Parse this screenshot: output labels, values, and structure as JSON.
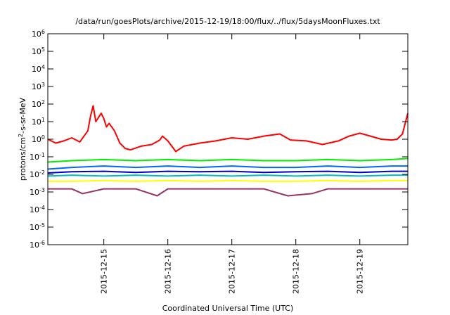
{
  "chart_data": {
    "type": "line",
    "title": "/data/run/goesPlots/archive/2015-12-19/18:00/flux/../flux/5daysMoonFluxes.txt",
    "xlabel": "Coordinated Universal Time (UTC)",
    "ylabel": {
      "base": "protons/cm",
      "sup": "2",
      "rest": "-s-sr-MeV"
    },
    "y_scale": "log",
    "ylim": [
      1e-06,
      1000000.0
    ],
    "xlim": [
      "2015-12-14 03:00",
      "2015-12-19 18:00"
    ],
    "y_ticks": [
      {
        "value": 1e-06,
        "exp": "-6"
      },
      {
        "value": 1e-05,
        "exp": "-5"
      },
      {
        "value": 0.0001,
        "exp": "-4"
      },
      {
        "value": 0.001,
        "exp": "-3"
      },
      {
        "value": 0.01,
        "exp": "-2"
      },
      {
        "value": 0.1,
        "exp": "-1"
      },
      {
        "value": 1.0,
        "exp": "0"
      },
      {
        "value": 10.0,
        "exp": "1"
      },
      {
        "value": 100.0,
        "exp": "2"
      },
      {
        "value": 1000.0,
        "exp": "3"
      },
      {
        "value": 10000.0,
        "exp": "4"
      },
      {
        "value": 100000.0,
        "exp": "5"
      },
      {
        "value": 1000000.0,
        "exp": "6"
      }
    ],
    "x_ticks": [
      {
        "value": "2015-12-15 00:00",
        "label": "2015-12-15"
      },
      {
        "value": "2015-12-16 00:00",
        "label": "2015-12-16"
      },
      {
        "value": "2015-12-17 00:00",
        "label": "2015-12-17"
      },
      {
        "value": "2015-12-18 00:00",
        "label": "2015-12-18"
      },
      {
        "value": "2015-12-19 00:00",
        "label": "2015-12-19"
      }
    ],
    "grid": false,
    "legend": "none",
    "series": [
      {
        "color": "#ff0000",
        "x": [
          "2015-12-14 03:00",
          "2015-12-14 06:00",
          "2015-12-14 09:00",
          "2015-12-14 12:00",
          "2015-12-14 15:00",
          "2015-12-14 18:00",
          "2015-12-14 19:00",
          "2015-12-14 20:00",
          "2015-12-14 21:00",
          "2015-12-14 23:00",
          "2015-12-15 00:00",
          "2015-12-15 01:00",
          "2015-12-15 02:00",
          "2015-12-15 04:00",
          "2015-12-15 06:00",
          "2015-12-15 08:00",
          "2015-12-15 10:00",
          "2015-12-15 14:00",
          "2015-12-15 18:00",
          "2015-12-15 21:00",
          "2015-12-15 22:00",
          "2015-12-16 00:00",
          "2015-12-16 03:00",
          "2015-12-16 06:00",
          "2015-12-16 12:00",
          "2015-12-16 18:00",
          "2015-12-17 00:00",
          "2015-12-17 06:00",
          "2015-12-17 12:00",
          "2015-12-17 18:00",
          "2015-12-17 22:00",
          "2015-12-18 04:00",
          "2015-12-18 10:00",
          "2015-12-18 16:00",
          "2015-12-18 20:00",
          "2015-12-19 00:00",
          "2015-12-19 04:00",
          "2015-12-19 08:00",
          "2015-12-19 12:00",
          "2015-12-19 14:00",
          "2015-12-19 16:00",
          "2015-12-19 18:00"
        ],
        "y": [
          1.0,
          0.6,
          0.8,
          1.2,
          0.7,
          3,
          20,
          80,
          10,
          30,
          15,
          5,
          8,
          3,
          0.6,
          0.3,
          0.25,
          0.4,
          0.5,
          0.9,
          1.5,
          0.8,
          0.2,
          0.4,
          0.6,
          0.8,
          1.2,
          1.0,
          1.5,
          2.0,
          0.9,
          0.8,
          0.5,
          0.8,
          1.5,
          2.2,
          1.5,
          1.0,
          0.9,
          1.0,
          2.0,
          30
        ]
      },
      {
        "color": "#00ee00",
        "x": [
          "2015-12-14 03:00",
          "2015-12-14 12:00",
          "2015-12-15 00:00",
          "2015-12-15 12:00",
          "2015-12-16 00:00",
          "2015-12-16 12:00",
          "2015-12-17 00:00",
          "2015-12-17 12:00",
          "2015-12-18 00:00",
          "2015-12-18 12:00",
          "2015-12-19 00:00",
          "2015-12-19 12:00",
          "2015-12-19 18:00"
        ],
        "y": [
          0.05,
          0.06,
          0.07,
          0.06,
          0.07,
          0.06,
          0.07,
          0.06,
          0.06,
          0.07,
          0.06,
          0.07,
          0.08
        ]
      },
      {
        "color": "#0066ff",
        "x": [
          "2015-12-14 03:00",
          "2015-12-14 12:00",
          "2015-12-15 00:00",
          "2015-12-15 12:00",
          "2015-12-16 00:00",
          "2015-12-16 12:00",
          "2015-12-17 00:00",
          "2015-12-17 12:00",
          "2015-12-18 00:00",
          "2015-12-18 12:00",
          "2015-12-19 00:00",
          "2015-12-19 12:00",
          "2015-12-19 18:00"
        ],
        "y": [
          0.02,
          0.025,
          0.03,
          0.025,
          0.03,
          0.025,
          0.03,
          0.025,
          0.025,
          0.03,
          0.025,
          0.03,
          0.03
        ]
      },
      {
        "color": "#0000cc",
        "x": [
          "2015-12-14 03:00",
          "2015-12-14 12:00",
          "2015-12-15 00:00",
          "2015-12-15 12:00",
          "2015-12-16 00:00",
          "2015-12-16 12:00",
          "2015-12-17 00:00",
          "2015-12-17 12:00",
          "2015-12-18 00:00",
          "2015-12-18 12:00",
          "2015-12-19 00:00",
          "2015-12-19 12:00",
          "2015-12-19 18:00"
        ],
        "y": [
          0.012,
          0.014,
          0.015,
          0.013,
          0.015,
          0.014,
          0.015,
          0.013,
          0.014,
          0.015,
          0.013,
          0.015,
          0.015
        ]
      },
      {
        "color": "#00bbbb",
        "x": [
          "2015-12-14 03:00",
          "2015-12-14 12:00",
          "2015-12-15 00:00",
          "2015-12-15 12:00",
          "2015-12-16 00:00",
          "2015-12-16 12:00",
          "2015-12-17 00:00",
          "2015-12-17 12:00",
          "2015-12-18 00:00",
          "2015-12-18 12:00",
          "2015-12-19 00:00",
          "2015-12-19 12:00",
          "2015-12-19 18:00"
        ],
        "y": [
          0.008,
          0.009,
          0.008,
          0.009,
          0.008,
          0.009,
          0.008,
          0.009,
          0.008,
          0.009,
          0.008,
          0.009,
          0.009
        ]
      },
      {
        "color": "#ffff00",
        "x": [
          "2015-12-14 03:00",
          "2015-12-14 12:00",
          "2015-12-15 00:00",
          "2015-12-15 12:00",
          "2015-12-16 00:00",
          "2015-12-16 12:00",
          "2015-12-17 00:00",
          "2015-12-17 12:00",
          "2015-12-18 00:00",
          "2015-12-18 12:00",
          "2015-12-19 00:00",
          "2015-12-19 12:00",
          "2015-12-19 18:00"
        ],
        "y": [
          0.004,
          0.004,
          0.0045,
          0.004,
          0.0045,
          0.004,
          0.0045,
          0.004,
          0.004,
          0.0045,
          0.004,
          0.0045,
          0.0045
        ]
      },
      {
        "color": "#993366",
        "x": [
          "2015-12-14 03:00",
          "2015-12-14 12:00",
          "2015-12-14 16:00",
          "2015-12-15 00:00",
          "2015-12-15 12:00",
          "2015-12-15 20:00",
          "2015-12-16 00:00",
          "2015-12-16 12:00",
          "2015-12-17 00:00",
          "2015-12-17 12:00",
          "2015-12-17 21:00",
          "2015-12-18 06:00",
          "2015-12-18 12:00",
          "2015-12-19 00:00",
          "2015-12-19 12:00",
          "2015-12-19 18:00"
        ],
        "y": [
          0.0015,
          0.0015,
          0.0008,
          0.0015,
          0.0015,
          0.0006,
          0.0015,
          0.0015,
          0.0015,
          0.0015,
          0.0006,
          0.0008,
          0.0015,
          0.0015,
          0.0015,
          0.0015
        ]
      }
    ]
  }
}
